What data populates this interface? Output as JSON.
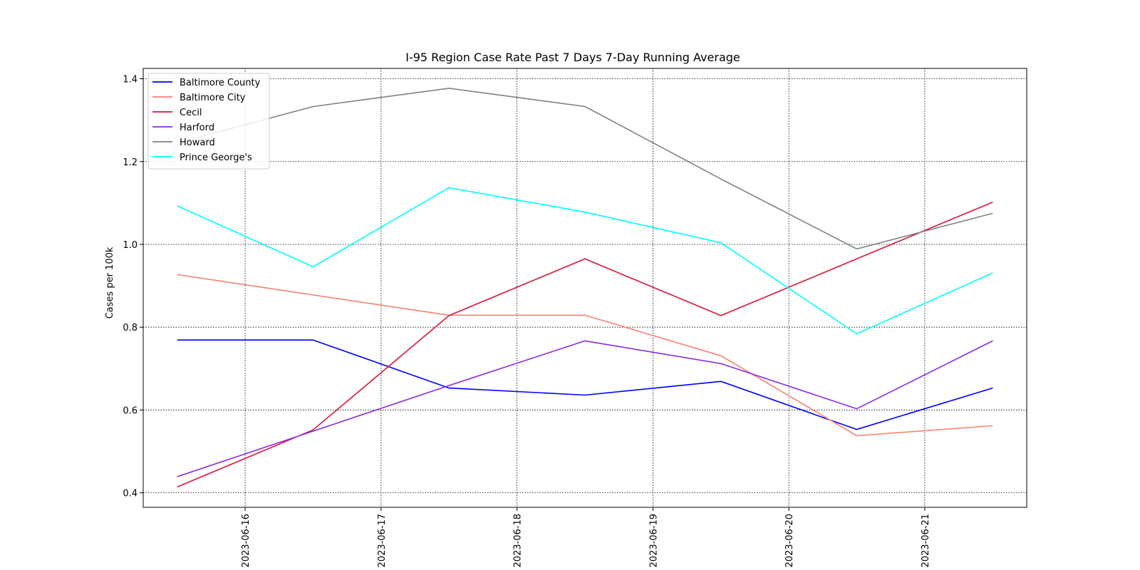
{
  "chart_data": {
    "type": "line",
    "title": "I-95 Region Case Rate  Past 7 Days 7-Day Running Average",
    "xlabel": "",
    "ylabel": "Cases per 100k",
    "x": [
      "2023-06-15 12:00",
      "2023-06-16 12:00",
      "2023-06-17 12:00",
      "2023-06-18 12:00",
      "2023-06-19 12:00",
      "2023-06-20 12:00",
      "2023-06-21 12:00"
    ],
    "x_ticks": [
      "2023-06-16",
      "2023-06-17",
      "2023-06-18",
      "2023-06-19",
      "2023-06-20",
      "2023-06-21"
    ],
    "x_range": [
      "2023-06-15 06:00",
      "2023-06-21 18:00"
    ],
    "y_ticks": [
      0.4,
      0.6,
      0.8,
      1.0,
      1.2,
      1.4
    ],
    "y_tick_labels": [
      "0.4",
      "0.6",
      "0.8",
      "1.0",
      "1.2",
      "1.4"
    ],
    "ylim": [
      0.365,
      1.425
    ],
    "grid": true,
    "legend_position": "top-left",
    "series": [
      {
        "name": "Baltimore County",
        "color": "#0000ff",
        "values": [
          0.769,
          0.769,
          0.653,
          0.636,
          0.669,
          0.553,
          0.653
        ]
      },
      {
        "name": "Baltimore City",
        "color": "#fa8072",
        "values": [
          0.927,
          0.878,
          0.829,
          0.829,
          0.731,
          0.538,
          0.562
        ]
      },
      {
        "name": "Cecil",
        "color": "#dc143c",
        "values": [
          0.414,
          0.552,
          0.828,
          0.965,
          0.828,
          0.965,
          1.102
        ]
      },
      {
        "name": "Harford",
        "color": "#8a2be2",
        "values": [
          0.439,
          0.549,
          0.659,
          0.767,
          0.712,
          0.603,
          0.767
        ]
      },
      {
        "name": "Howard",
        "color": "#808080",
        "values": [
          1.245,
          1.333,
          1.377,
          1.333,
          1.158,
          0.989,
          1.075
        ]
      },
      {
        "name": "Prince George's",
        "color": "#00ffff",
        "values": [
          1.093,
          0.946,
          1.137,
          1.078,
          1.004,
          0.784,
          0.931
        ]
      }
    ]
  }
}
